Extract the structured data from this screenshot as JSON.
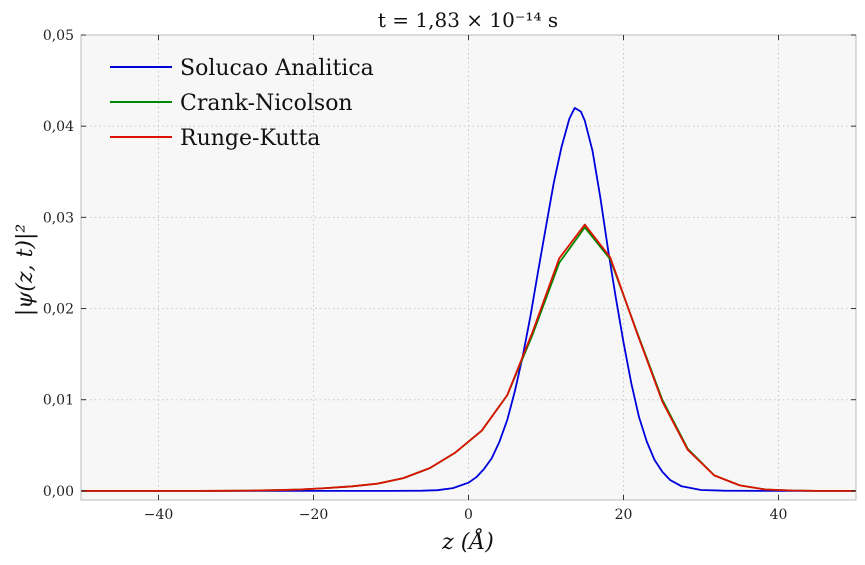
{
  "chart_data": {
    "type": "line",
    "title": "t = 1,83 × 10⁻¹⁴ s",
    "xlabel": "z (Å)",
    "ylabel": "|ψ(z, t)|²",
    "xlim": [
      -50,
      50
    ],
    "ylim": [
      -0.001,
      0.05
    ],
    "grid": true,
    "legend_position": "top-left",
    "x_ticks": [
      -40,
      -20,
      0,
      20,
      40
    ],
    "x_tick_labels": [
      "−40",
      "−20",
      "0",
      "20",
      "40"
    ],
    "y_ticks": [
      0.0,
      0.01,
      0.02,
      0.03,
      0.04,
      0.05
    ],
    "y_tick_labels": [
      "0,00",
      "0,01",
      "0,02",
      "0,03",
      "0,04",
      "0,05"
    ],
    "colors": {
      "plot_background": "#f7f7f7",
      "frame": "#bbbbbb",
      "grid": "#c8c8c8"
    },
    "series": [
      {
        "name": "Solucao Analitica",
        "color": "#0000dd",
        "x": [
          -50,
          -25,
          -15,
          -10,
          -6,
          -4,
          -2,
          0,
          1,
          2,
          3,
          4,
          5,
          6,
          7,
          8,
          9,
          10,
          11,
          12,
          13,
          13.7,
          14.5,
          15,
          16,
          17,
          18,
          19,
          20,
          21,
          22,
          23,
          24,
          25,
          26,
          27.5,
          30,
          33,
          38,
          50
        ],
        "y": [
          0,
          0,
          0,
          0,
          2e-05,
          8e-05,
          0.0003,
          0.0009,
          0.0015,
          0.0024,
          0.0036,
          0.0054,
          0.0078,
          0.011,
          0.0148,
          0.0192,
          0.0242,
          0.029,
          0.0338,
          0.0377,
          0.0408,
          0.042,
          0.0416,
          0.0406,
          0.0373,
          0.0322,
          0.0265,
          0.0212,
          0.0163,
          0.0118,
          0.0081,
          0.0054,
          0.0034,
          0.0021,
          0.0012,
          0.0005,
          0.0001,
          2e-05,
          0,
          0
        ]
      },
      {
        "name": "Crank-Nicolson",
        "color": "#008800",
        "x": [
          -50,
          -45,
          -41.5,
          -38.3,
          -35,
          -31.7,
          -28.4,
          -25,
          -21.7,
          -18.4,
          -15,
          -11.7,
          -8.4,
          -5,
          -1.7,
          1.7,
          5,
          8.3,
          11.7,
          15,
          18.3,
          21.7,
          25,
          28.3,
          31.7,
          35,
          38.3,
          41.7,
          45,
          50
        ],
        "y": [
          0,
          0,
          0,
          0,
          0,
          1e-05,
          3e-05,
          7e-05,
          0.00015,
          0.0003,
          0.0005,
          0.0008,
          0.0014,
          0.0025,
          0.0042,
          0.0066,
          0.0105,
          0.0172,
          0.025,
          0.0289,
          0.0254,
          0.0175,
          0.01,
          0.0046,
          0.0017,
          0.0006,
          0.00015,
          4e-05,
          0,
          0
        ]
      },
      {
        "name": "Runge-Kutta",
        "color": "#dd1100",
        "x": [
          -50,
          -45,
          -41.5,
          -38.3,
          -35,
          -31.7,
          -28.4,
          -25,
          -21.7,
          -18.4,
          -15,
          -11.7,
          -8.4,
          -5,
          -1.7,
          1.7,
          5,
          8.3,
          11.7,
          15,
          18.3,
          21.7,
          25,
          28.3,
          31.7,
          35,
          38.3,
          41.7,
          45,
          50
        ],
        "y": [
          0,
          0,
          0,
          0,
          0,
          1e-05,
          3e-05,
          7e-05,
          0.00015,
          0.0003,
          0.0005,
          0.0008,
          0.0014,
          0.0025,
          0.0042,
          0.0066,
          0.0105,
          0.0175,
          0.0255,
          0.0292,
          0.0256,
          0.0174,
          0.0098,
          0.0045,
          0.0017,
          0.0006,
          0.00015,
          4e-05,
          0,
          0
        ]
      }
    ]
  }
}
